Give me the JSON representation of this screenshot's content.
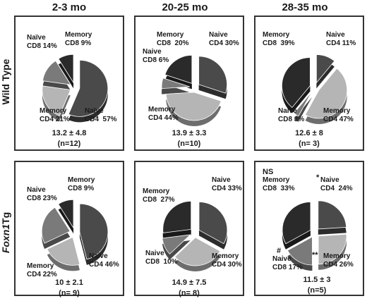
{
  "columns": [
    "2-3 mo",
    "20-25 mo",
    "28-35 mo"
  ],
  "rows": [
    {
      "label": "Wild Type",
      "italic": false
    },
    {
      "label": "Foxn1Tg",
      "italic_part": "Foxn1",
      "plain_part": "Tg"
    }
  ],
  "chart_data": [
    {
      "type": "pie",
      "row": "Wild Type",
      "column": "2-3 mo",
      "slices": [
        {
          "category": "Naïve CD4",
          "value": 57,
          "label_l1": "Naïve",
          "label_l2": "CD4  57%",
          "color": "#4a4a4a"
        },
        {
          "category": "Memory CD4",
          "value": 21,
          "label_l1": "Memory",
          "label_l2": "CD4 21%",
          "color": "#b5b5b5"
        },
        {
          "category": "Naïve CD8",
          "value": 14,
          "label_l1": "Naïve",
          "label_l2": "CD8 14%",
          "color": "#7a7a7a"
        },
        {
          "category": "Memory CD8",
          "value": 9,
          "label_l1": "Memory",
          "label_l2": "CD8 9%",
          "color": "#2a2a2a"
        }
      ],
      "mean": "13.2 ± 4.8",
      "n": "(n=12)"
    },
    {
      "type": "pie",
      "row": "Wild Type",
      "column": "20-25 mo",
      "slices": [
        {
          "category": "Naive CD4",
          "value": 30,
          "label_l1": "Naive",
          "label_l2": "CD4 30%",
          "color": "#4a4a4a"
        },
        {
          "category": "Memory CD4",
          "value": 44,
          "label_l1": "Memory",
          "label_l2": "CD4 44%",
          "color": "#b5b5b5"
        },
        {
          "category": "Naive CD8",
          "value": 6,
          "label_l1": "Naive",
          "label_l2": "CD8 6%",
          "color": "#7a7a7a"
        },
        {
          "category": "Memory CD8",
          "value": 20,
          "label_l1": "Memory",
          "label_l2": "CD8  20%",
          "color": "#2a2a2a"
        }
      ],
      "mean": "13.9 ± 3.3",
      "n": "(n=10)"
    },
    {
      "type": "pie",
      "row": "Wild Type",
      "column": "28-35 mo",
      "slices": [
        {
          "category": "Naive CD4",
          "value": 11,
          "label_l1": "Naive",
          "label_l2": "CD4 11%",
          "color": "#4a4a4a"
        },
        {
          "category": "Memory CD4",
          "value": 47,
          "label_l1": "Memory",
          "label_l2": "CD4 47%",
          "color": "#b5b5b5"
        },
        {
          "category": "Naive CD8",
          "value": 3,
          "label_l1": "Naive",
          "label_l2": "CD8 3%",
          "color": "#7a7a7a"
        },
        {
          "category": "Memory CD8",
          "value": 39,
          "label_l1": "Memory",
          "label_l2": "CD8  39%",
          "color": "#2a2a2a"
        }
      ],
      "mean": "12.6 ± 8",
      "n": "(n= 3)"
    },
    {
      "type": "pie",
      "row": "Foxn1Tg",
      "column": "2-3 mo",
      "slices": [
        {
          "category": "Naive CD4",
          "value": 46,
          "label_l1": "Naive",
          "label_l2": "CD4 46%",
          "color": "#4a4a4a"
        },
        {
          "category": "Memory CD4",
          "value": 22,
          "label_l1": "Memory",
          "label_l2": "CD4 22%",
          "color": "#b5b5b5"
        },
        {
          "category": "Naive CD8",
          "value": 23,
          "label_l1": "Naive",
          "label_l2": "CD8 23%",
          "color": "#7a7a7a"
        },
        {
          "category": "Memory CD8",
          "value": 9,
          "label_l1": "Memory",
          "label_l2": "CD8 9%",
          "color": "#2a2a2a"
        }
      ],
      "mean": "10 ± 2.1",
      "n": "(n= 9)"
    },
    {
      "type": "pie",
      "row": "Foxn1Tg",
      "column": "20-25 mo",
      "slices": [
        {
          "category": "Naive CD4",
          "value": 33,
          "label_l1": "Naive",
          "label_l2": "CD4 33%",
          "color": "#4a4a4a"
        },
        {
          "category": "Memory CD4",
          "value": 30,
          "label_l1": "Memory",
          "label_l2": "CD4 30%",
          "color": "#b5b5b5"
        },
        {
          "category": "Naive CD8",
          "value": 10,
          "label_l1": "Naive",
          "label_l2": "CD8  10%",
          "color": "#7a7a7a"
        },
        {
          "category": "Memory CD8",
          "value": 27,
          "label_l1": "Memory",
          "label_l2": "CD8  27%",
          "color": "#2a2a2a"
        }
      ],
      "mean": "14.9 ± 7.5",
      "n": "(n= 8)"
    },
    {
      "type": "pie",
      "row": "Foxn1Tg",
      "column": "28-35 mo",
      "slices": [
        {
          "category": "Naive CD4",
          "value": 24,
          "label_l1": "Naive",
          "label_l2": "CD4  24%",
          "color": "#4a4a4a",
          "mark": "*"
        },
        {
          "category": "Memory CD4",
          "value": 26,
          "label_l1": "Memory",
          "label_l2": "CD4 26%",
          "color": "#b5b5b5",
          "mark": "**"
        },
        {
          "category": "Naive CD8",
          "value": 17,
          "label_l1": "Naive",
          "label_l2": "CD8 17%",
          "color": "#7a7a7a",
          "mark": "#"
        },
        {
          "category": "Memory CD8",
          "value": 33,
          "label_l1": "Memory",
          "label_l2": "CD8  33%",
          "color": "#2a2a2a",
          "mark": "NS"
        }
      ],
      "mean": "11.5 ± 3",
      "n": "(n=5)"
    }
  ]
}
